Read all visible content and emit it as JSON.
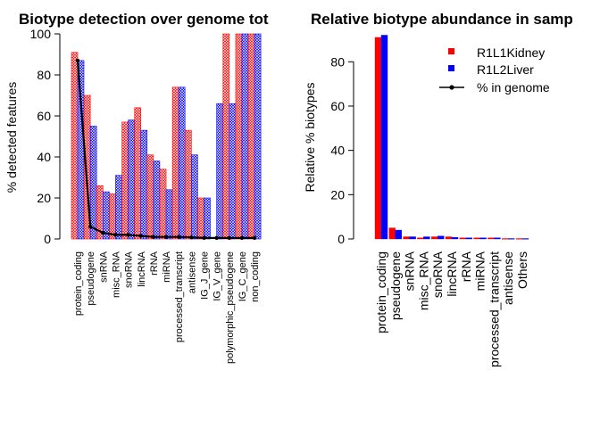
{
  "colors": {
    "series1": "#ff0000",
    "series2": "#0000ff",
    "line": "#000000",
    "axis": "#000000"
  },
  "chart_data": [
    {
      "type": "bar",
      "title": "Biotype detection over genome tot",
      "xlabel": "",
      "ylabel": "% detected features",
      "ylim": [
        0,
        100
      ],
      "yticks": [
        "0",
        "20",
        "40",
        "60",
        "80",
        "100"
      ],
      "categories": [
        "protein_coding",
        "pseudogene",
        "snRNA",
        "misc_RNA",
        "snoRNA",
        "lincRNA",
        "rRNA",
        "miRNA",
        "processed_transcript",
        "antisense",
        "IG_J_gene",
        "IG_V_gene",
        "polymorphic_pseudogene",
        "IG_C_gene",
        "non_coding"
      ],
      "series": [
        {
          "values": [
            91,
            70,
            26,
            22,
            57,
            64,
            41,
            34,
            74,
            53,
            20,
            0,
            100,
            100,
            100
          ]
        },
        {
          "values": [
            87,
            55,
            23,
            31,
            58,
            53,
            38,
            24,
            74,
            41,
            20,
            66,
            66,
            100,
            100
          ]
        }
      ],
      "line": {
        "name": "% in genome",
        "values": [
          87,
          6,
          3,
          2,
          2,
          1.5,
          1,
          1,
          1,
          0.8,
          0.5,
          0.5,
          0.5,
          0.5,
          0.5
        ]
      },
      "grid": false
    },
    {
      "type": "bar",
      "title": "Relative biotype abundance in samp",
      "xlabel": "",
      "ylabel": "Relative % biotypes",
      "ylim": [
        0,
        100
      ],
      "yticks": [
        "0",
        "20",
        "40",
        "60",
        "80"
      ],
      "categories": [
        "protein_coding",
        "pseudogene",
        "snRNA",
        "misc_RNA",
        "snoRNA",
        "lincRNA",
        "rRNA",
        "miRNA",
        "processed_transcript",
        "antisense",
        "Others"
      ],
      "series": [
        {
          "name": "R1L1Kidney",
          "values": [
            91,
            5,
            1,
            0.5,
            1,
            1,
            0.5,
            0.5,
            0.5,
            0.2,
            0.2
          ]
        },
        {
          "name": "R1L2Liver",
          "values": [
            92,
            4,
            1,
            1,
            1.3,
            0.7,
            0.5,
            0.5,
            0.5,
            0.2,
            0.2
          ]
        }
      ],
      "legend": {
        "position": "top-right",
        "entries": [
          "R1L1Kidney",
          "R1L2Liver",
          "% in genome"
        ]
      },
      "grid": false
    }
  ]
}
